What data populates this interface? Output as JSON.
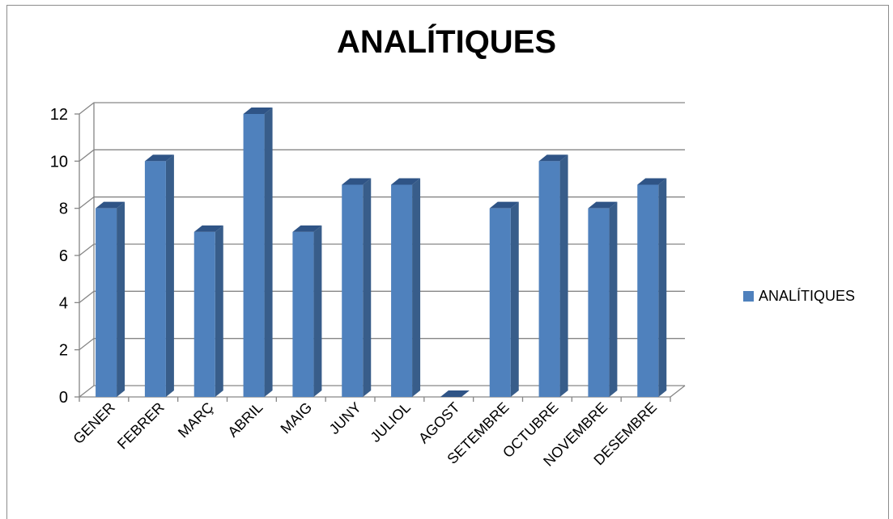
{
  "chart_data": {
    "type": "bar",
    "title": "ANALÍTIQUES",
    "categories": [
      "GENER",
      "FEBRER",
      "MARÇ",
      "ABRIL",
      "MAIG",
      "JUNY",
      "JULIOL",
      "AGOST",
      "SETEMBRE",
      "OCTUBRE",
      "NOVEMBRE",
      "DESEMBRE"
    ],
    "series": [
      {
        "name": "ANALÍTIQUES",
        "values": [
          8,
          10,
          7,
          12,
          7,
          9,
          9,
          0,
          8,
          10,
          8,
          9
        ]
      }
    ],
    "ylim": [
      0,
      12
    ],
    "yticks": [
      "0",
      "2",
      "4",
      "6",
      "8",
      "10",
      "12"
    ],
    "xlabel": "",
    "ylabel": "",
    "grid": true,
    "legend_position": "right",
    "style_3d": true,
    "colors": {
      "bar_front": "#4f81bd",
      "bar_side": "#385d8a",
      "bar_top": "#2f5486"
    }
  }
}
